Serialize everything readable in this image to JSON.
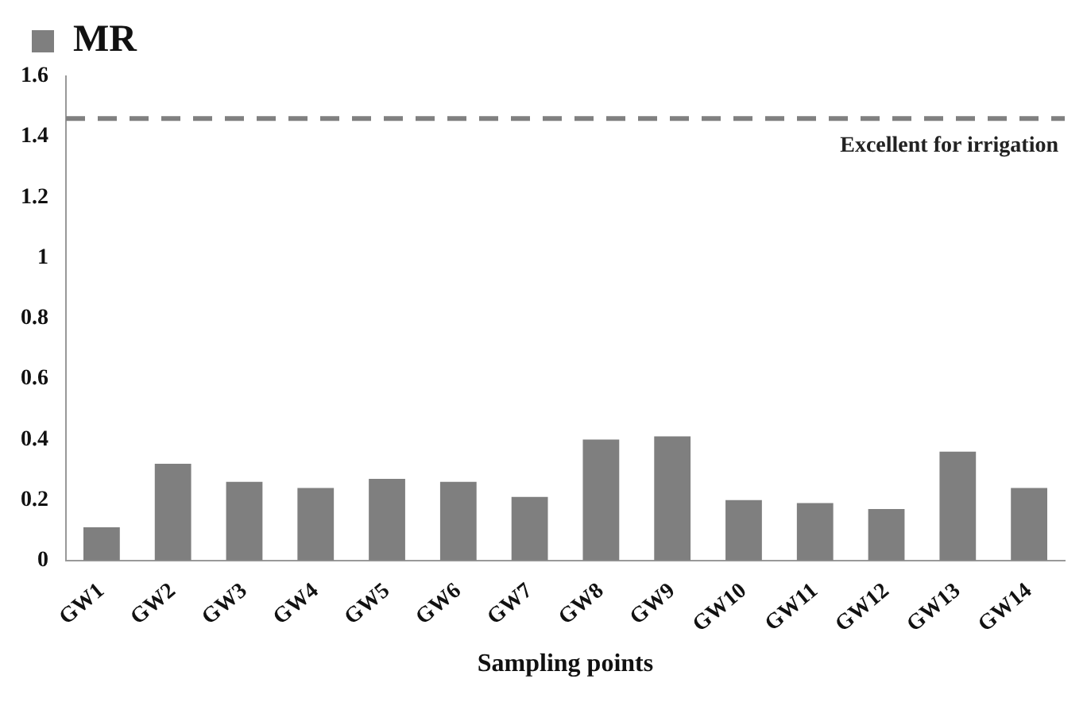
{
  "chart_data": {
    "type": "bar",
    "xlabel": "Sampling points",
    "categories": [
      "GW1",
      "GW2",
      "GW3",
      "GW4",
      "GW5",
      "GW6",
      "GW7",
      "GW8",
      "GW9",
      "GW10",
      "GW11",
      "GW12",
      "GW13",
      "GW14"
    ],
    "series": [
      {
        "name": "MR",
        "color": "#7f7f7f",
        "values": [
          0.11,
          0.32,
          0.26,
          0.24,
          0.27,
          0.26,
          0.21,
          0.4,
          0.41,
          0.2,
          0.19,
          0.17,
          0.36,
          0.24
        ]
      }
    ],
    "ylim": [
      0,
      1.6
    ],
    "yticks": [
      0,
      0.2,
      0.4,
      0.6,
      0.8,
      1,
      1.2,
      1.4,
      1.6
    ],
    "grid": false,
    "legend": "top left",
    "ref_lines": [
      {
        "axis": "y",
        "value": 1.46,
        "label": "Excellent for irrigation",
        "color": "#808080",
        "line_style": "dashed"
      }
    ]
  }
}
